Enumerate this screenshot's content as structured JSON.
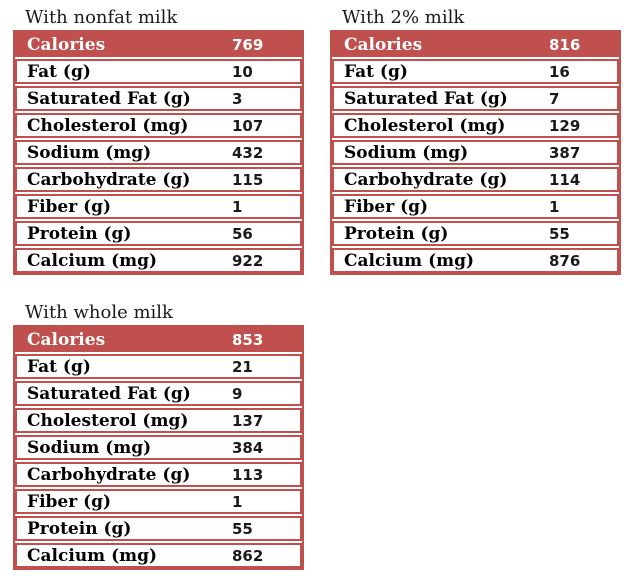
{
  "colors": {
    "accent_red": "#c0504d",
    "header_text": "#ffffff",
    "label_text": "#000000",
    "value_text": "#1a1a1a",
    "title_text": "#1a1a1a",
    "background": "#ffffff"
  },
  "tables": [
    {
      "title": "With nonfat milk",
      "header": {
        "label": "Calories",
        "value": "769"
      },
      "rows": [
        {
          "label": "Fat (g)",
          "value": "10"
        },
        {
          "label": "Saturated Fat (g)",
          "value": "3"
        },
        {
          "label": "Cholesterol (mg)",
          "value": "107"
        },
        {
          "label": "Sodium (mg)",
          "value": "432"
        },
        {
          "label": "Carbohydrate (g)",
          "value": "115"
        },
        {
          "label": "Fiber (g)",
          "value": "1"
        },
        {
          "label": "Protein (g)",
          "value": "56"
        },
        {
          "label": "Calcium (mg)",
          "value": "922"
        }
      ]
    },
    {
      "title": "With 2% milk",
      "header": {
        "label": "Calories",
        "value": "816"
      },
      "rows": [
        {
          "label": "Fat (g)",
          "value": "16"
        },
        {
          "label": "Saturated Fat (g)",
          "value": "7"
        },
        {
          "label": "Cholesterol (mg)",
          "value": "129"
        },
        {
          "label": "Sodium (mg)",
          "value": "387"
        },
        {
          "label": "Carbohydrate (g)",
          "value": "114"
        },
        {
          "label": "Fiber (g)",
          "value": "1"
        },
        {
          "label": "Protein (g)",
          "value": "55"
        },
        {
          "label": "Calcium (mg)",
          "value": "876"
        }
      ]
    },
    {
      "title": "With whole milk",
      "header": {
        "label": "Calories",
        "value": "853"
      },
      "rows": [
        {
          "label": "Fat (g)",
          "value": "21"
        },
        {
          "label": "Saturated Fat (g)",
          "value": "9"
        },
        {
          "label": "Cholesterol (mg)",
          "value": "137"
        },
        {
          "label": "Sodium (mg)",
          "value": "384"
        },
        {
          "label": "Carbohydrate (g)",
          "value": "113"
        },
        {
          "label": "Fiber (g)",
          "value": "1"
        },
        {
          "label": "Protein (g)",
          "value": "55"
        },
        {
          "label": "Calcium (mg)",
          "value": "862"
        }
      ]
    }
  ]
}
